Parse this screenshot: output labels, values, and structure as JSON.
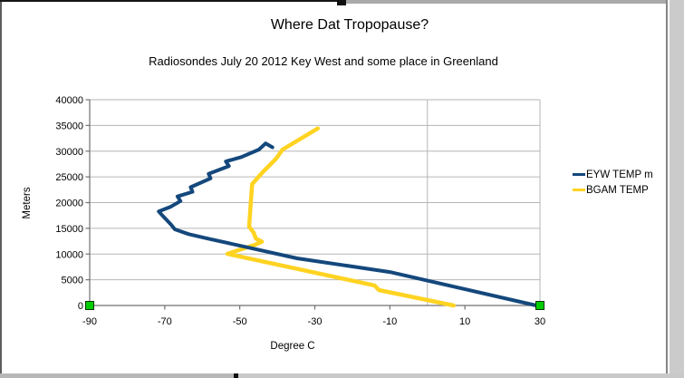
{
  "chart": {
    "title": "Where Dat Tropopause?",
    "subtitle": "Radiosondes July 20 2012 Key West and some place in Greenland"
  },
  "chart_data": {
    "type": "line",
    "title": "Where Dat Tropopause?",
    "subtitle": "Radiosondes July 20 2012 Key West and some place in Greenland",
    "xlabel": "Degree C",
    "ylabel": "Meters",
    "xlim": [
      -90,
      30
    ],
    "ylim": [
      0,
      40000
    ],
    "x_ticks": [
      -90,
      -70,
      -50,
      -30,
      -10,
      10,
      30
    ],
    "y_ticks": [
      0,
      5000,
      10000,
      15000,
      20000,
      25000,
      30000,
      35000,
      40000
    ],
    "x_gridlines": [
      0
    ],
    "grid": "horizontal major lines; vertical line at 0 deg; plot border on right and top",
    "legend_position": "right",
    "series": [
      {
        "name": "EYW TEMP m",
        "color": "#14487c",
        "points": [
          [
            29,
            0
          ],
          [
            -10,
            6500
          ],
          [
            -34.7,
            9160
          ],
          [
            -58.4,
            12990
          ],
          [
            -63.6,
            13870
          ],
          [
            -67.3,
            14800
          ],
          [
            -68.3,
            15700
          ],
          [
            -70.1,
            17100
          ],
          [
            -71.6,
            18270
          ],
          [
            -68.5,
            19150
          ],
          [
            -65.8,
            20300
          ],
          [
            -66.6,
            21200
          ],
          [
            -62.6,
            22100
          ],
          [
            -63.1,
            23000
          ],
          [
            -57.8,
            24700
          ],
          [
            -58.3,
            25600
          ],
          [
            -52.9,
            27100
          ],
          [
            -53.7,
            28000
          ],
          [
            -49.6,
            28850
          ],
          [
            -44.9,
            30300
          ],
          [
            -43.1,
            31500
          ],
          [
            -41.3,
            30750
          ]
        ]
      },
      {
        "name": "BGAM TEMP",
        "color": "#ffd321",
        "points": [
          [
            7,
            0
          ],
          [
            -12.9,
            3000
          ],
          [
            -14.1,
            3900
          ],
          [
            -53.3,
            10040
          ],
          [
            -45.9,
            11800
          ],
          [
            -44.1,
            12400
          ],
          [
            -45.7,
            13000
          ],
          [
            -46.3,
            14150
          ],
          [
            -47.5,
            15330
          ],
          [
            -47.1,
            19700
          ],
          [
            -46.7,
            23600
          ],
          [
            -43.9,
            25900
          ],
          [
            -40.3,
            28550
          ],
          [
            -38.6,
            30300
          ],
          [
            -29.2,
            34420
          ]
        ]
      }
    ]
  },
  "selection": {
    "handle_color": "#00cc00",
    "handle_border_color": "#003300",
    "selected_object": "x-axis"
  },
  "colors": {
    "gridline": "#b6b6b6",
    "axis_line": "#707070",
    "background": "#ffffff"
  }
}
